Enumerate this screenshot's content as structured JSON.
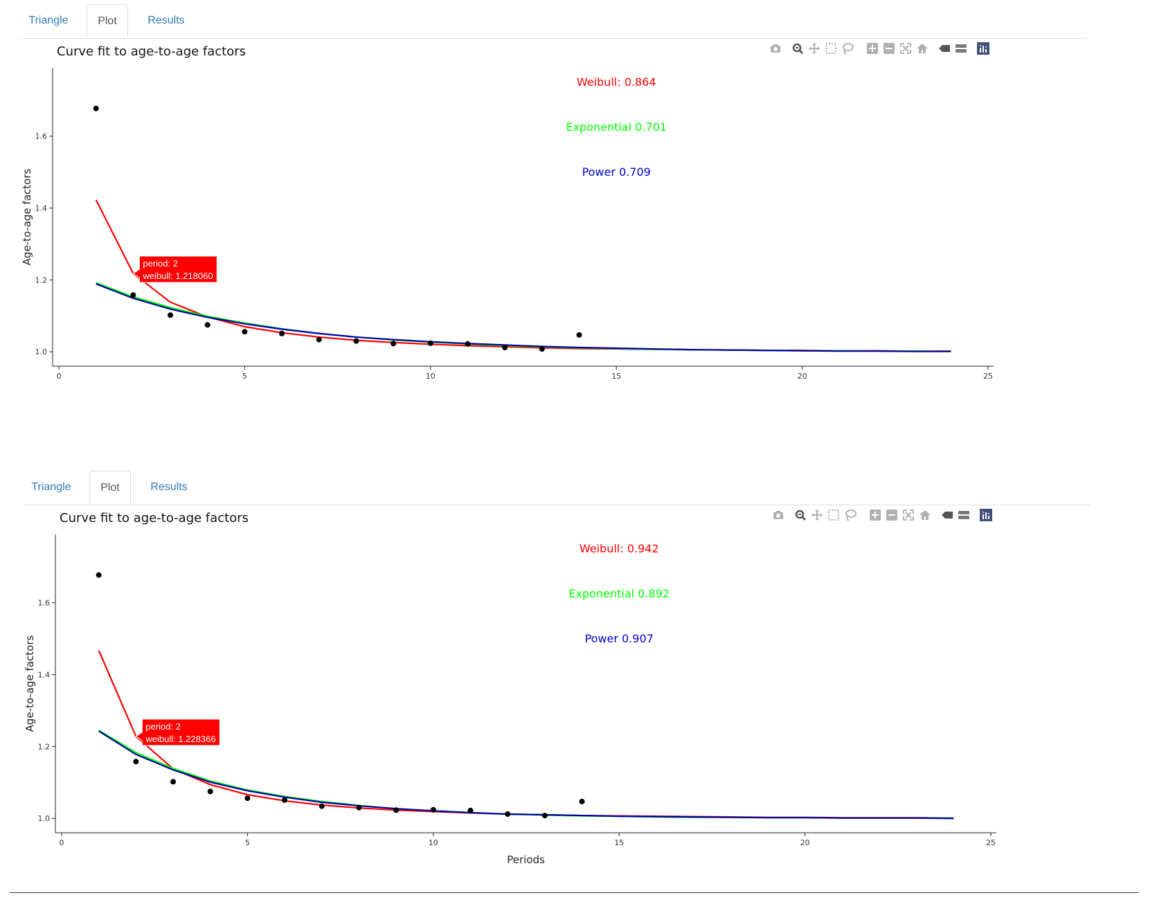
{
  "panels": [
    {
      "tabs": [
        {
          "label": "Triangle",
          "active": false
        },
        {
          "label": "Plot",
          "active": true
        },
        {
          "label": "Results",
          "active": false
        }
      ],
      "title": "Curve fit to age-to-age factors",
      "modebar_icons": [
        "camera-icon",
        "zoom-icon",
        "pan-icon",
        "box-select-icon",
        "lasso-icon",
        "zoom-in-icon",
        "zoom-out-icon",
        "autoscale-icon",
        "reset-axes-icon",
        "hover-closest-icon",
        "hover-compare-icon",
        "plotly-logo-icon"
      ],
      "chart_data": {
        "type": "scatter",
        "xlabel": "",
        "ylabel": "Age-to-age factors",
        "xlim": [
          0,
          25
        ],
        "ylim": [
          0.96,
          1.79
        ],
        "xticks": [
          0,
          5,
          10,
          15,
          20,
          25
        ],
        "yticks": [
          1.0,
          1.2,
          1.4,
          1.6
        ],
        "grid": false,
        "points": {
          "x": [
            1,
            2,
            3,
            4,
            5,
            6,
            7,
            8,
            9,
            10,
            11,
            12,
            13,
            14
          ],
          "y": [
            1.677,
            1.158,
            1.102,
            1.075,
            1.056,
            1.051,
            1.034,
            1.03,
            1.023,
            1.024,
            1.022,
            1.012,
            1.008,
            1.047
          ]
        },
        "series": [
          {
            "name": "Weibull",
            "color": "#ff0000",
            "x": [
              1,
              2,
              3,
              4,
              5,
              6,
              7,
              8,
              9,
              10,
              11,
              12,
              13,
              14,
              15,
              16,
              17,
              18,
              19,
              20,
              21,
              22,
              23,
              24
            ],
            "y": [
              1.423,
              1.218,
              1.138,
              1.097,
              1.07,
              1.053,
              1.041,
              1.032,
              1.026,
              1.021,
              1.017,
              1.014,
              1.011,
              1.009,
              1.008,
              1.007,
              1.006,
              1.005,
              1.004,
              1.004,
              1.003,
              1.003,
              1.002,
              1.002
            ]
          },
          {
            "name": "Exponential",
            "color": "#00ff00",
            "x": [
              1,
              2,
              3,
              4,
              5,
              6,
              7,
              8,
              9,
              10,
              11,
              12,
              13,
              14,
              15,
              16,
              17,
              18,
              19,
              20,
              21,
              22,
              23,
              24
            ],
            "y": [
              1.192,
              1.153,
              1.123,
              1.099,
              1.08,
              1.064,
              1.051,
              1.041,
              1.033,
              1.027,
              1.022,
              1.017,
              1.014,
              1.011,
              1.009,
              1.007,
              1.006,
              1.005,
              1.004,
              1.003,
              1.003,
              1.002,
              1.002,
              1.001
            ]
          },
          {
            "name": "Power",
            "color": "#0000aa",
            "x": [
              1,
              2,
              3,
              4,
              5,
              6,
              7,
              8,
              9,
              10,
              11,
              12,
              13,
              14,
              15,
              16,
              17,
              18,
              19,
              20,
              21,
              22,
              23,
              24
            ],
            "y": [
              1.189,
              1.149,
              1.119,
              1.096,
              1.078,
              1.063,
              1.051,
              1.041,
              1.034,
              1.028,
              1.023,
              1.019,
              1.015,
              1.012,
              1.01,
              1.008,
              1.006,
              1.005,
              1.004,
              1.003,
              1.002,
              1.002,
              1.001,
              1.001
            ]
          }
        ],
        "annotations": [
          {
            "text": "Weibull: 0.864",
            "color": "#ff0000",
            "x": 15,
            "y": 1.74
          },
          {
            "text": "Exponential 0.701",
            "color": "#00ff00",
            "x": 15,
            "y": 1.615
          },
          {
            "text": "Power 0.709",
            "color": "#0000cc",
            "x": 15,
            "y": 1.49
          }
        ],
        "tooltip": {
          "lines": [
            "period:  2",
            "weibull: 1.218060"
          ],
          "x": 2,
          "y": 1.218,
          "color": "#ff0000"
        }
      }
    },
    {
      "tabs": [
        {
          "label": "Triangle",
          "active": false
        },
        {
          "label": "Plot",
          "active": true
        },
        {
          "label": "Results",
          "active": false
        }
      ],
      "title": "Curve fit to age-to-age factors",
      "modebar_icons": [
        "camera-icon",
        "zoom-icon",
        "pan-icon",
        "box-select-icon",
        "lasso-icon",
        "zoom-in-icon",
        "zoom-out-icon",
        "autoscale-icon",
        "reset-axes-icon",
        "hover-closest-icon",
        "hover-compare-icon",
        "plotly-logo-icon"
      ],
      "chart_data": {
        "type": "scatter",
        "xlabel": "Periods",
        "ylabel": "Age-to-age factors",
        "xlim": [
          0,
          25
        ],
        "ylim": [
          0.96,
          1.79
        ],
        "xticks": [
          0,
          5,
          10,
          15,
          20,
          25
        ],
        "yticks": [
          1.0,
          1.2,
          1.4,
          1.6
        ],
        "grid": false,
        "points": {
          "x": [
            1,
            2,
            3,
            4,
            5,
            6,
            7,
            8,
            9,
            10,
            11,
            12,
            13,
            14
          ],
          "y": [
            1.677,
            1.158,
            1.102,
            1.075,
            1.056,
            1.051,
            1.034,
            1.03,
            1.023,
            1.024,
            1.022,
            1.012,
            1.008,
            1.047
          ]
        },
        "series": [
          {
            "name": "Weibull",
            "color": "#ff0000",
            "x": [
              1,
              2,
              3,
              4,
              5,
              6,
              7,
              8,
              9,
              10,
              11,
              12,
              13,
              14,
              15,
              16,
              17,
              18,
              19,
              20,
              21,
              22,
              23,
              24
            ],
            "y": [
              1.467,
              1.228,
              1.138,
              1.094,
              1.066,
              1.049,
              1.037,
              1.029,
              1.023,
              1.019,
              1.015,
              1.012,
              1.01,
              1.008,
              1.007,
              1.006,
              1.005,
              1.004,
              1.003,
              1.003,
              1.002,
              1.002,
              1.002,
              1.001
            ]
          },
          {
            "name": "Exponential",
            "color": "#00ff00",
            "x": [
              1,
              2,
              3,
              4,
              5,
              6,
              7,
              8,
              9,
              10,
              11,
              12,
              13,
              14,
              15,
              16,
              17,
              18,
              19,
              20,
              21,
              22,
              23,
              24
            ],
            "y": [
              1.245,
              1.183,
              1.139,
              1.104,
              1.079,
              1.061,
              1.047,
              1.036,
              1.027,
              1.021,
              1.016,
              1.012,
              1.009,
              1.007,
              1.006,
              1.004,
              1.003,
              1.003,
              1.002,
              1.002,
              1.001,
              1.001,
              1.001,
              1.001
            ]
          },
          {
            "name": "Power",
            "color": "#0000aa",
            "x": [
              1,
              2,
              3,
              4,
              5,
              6,
              7,
              8,
              9,
              10,
              11,
              12,
              13,
              14,
              15,
              16,
              17,
              18,
              19,
              20,
              21,
              22,
              23,
              24
            ],
            "y": [
              1.243,
              1.178,
              1.135,
              1.101,
              1.077,
              1.059,
              1.045,
              1.035,
              1.027,
              1.021,
              1.016,
              1.012,
              1.01,
              1.008,
              1.006,
              1.005,
              1.004,
              1.003,
              1.002,
              1.002,
              1.001,
              1.001,
              1.001,
              1.0
            ]
          }
        ],
        "annotations": [
          {
            "text": "Weibull: 0.942",
            "color": "#ff0000",
            "x": 15,
            "y": 1.74
          },
          {
            "text": "Exponential 0.892",
            "color": "#00ff00",
            "x": 15,
            "y": 1.615
          },
          {
            "text": "Power 0.907",
            "color": "#0000cc",
            "x": 15,
            "y": 1.49
          }
        ],
        "tooltip": {
          "lines": [
            "period:  2",
            "weibull: 1.228366"
          ],
          "x": 2,
          "y": 1.228,
          "color": "#ff0000"
        }
      }
    }
  ]
}
